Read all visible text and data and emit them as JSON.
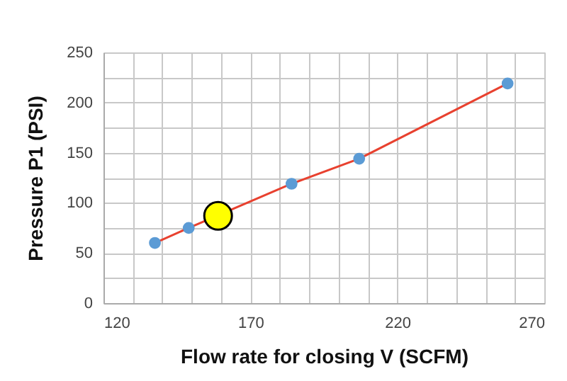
{
  "chart_data": {
    "type": "scatter",
    "xlabel": "Flow rate for closing V (SCFM)",
    "ylabel": "Pressure P1 (PSI)",
    "xlim": [
      120,
      270
    ],
    "ylim": [
      0,
      250
    ],
    "xticks": [
      120,
      {
        "value": 130,
        "label": null
      },
      {
        "value": 140,
        "label": null
      },
      {
        "value": 150,
        "label": null
      },
      {
        "value": 160,
        "label": null
      },
      170,
      {
        "value": 180,
        "label": null
      },
      {
        "value": 190,
        "label": null
      },
      {
        "value": 200,
        "label": null
      },
      {
        "value": 210,
        "label": null
      },
      220,
      {
        "value": 230,
        "label": null
      },
      {
        "value": 240,
        "label": null
      },
      {
        "value": 250,
        "label": null
      },
      {
        "value": 260,
        "label": null
      },
      270
    ],
    "yticks": [
      0,
      {
        "value": 25,
        "label": null
      },
      50,
      {
        "value": 75,
        "label": null
      },
      100,
      {
        "value": 125,
        "label": null
      },
      150,
      {
        "value": 175,
        "label": null
      },
      200,
      {
        "value": 225,
        "label": null
      },
      250
    ],
    "grid": true,
    "series": [
      {
        "type": "line",
        "marker": "none",
        "color": "#e8412f",
        "x": [
          137.5,
          149,
          184,
          207,
          257.5
        ],
        "values": [
          60,
          75,
          119,
          144,
          219
        ]
      },
      {
        "marker": "circle",
        "color": "#5b9bd5",
        "x": [
          137.5,
          149,
          184,
          207,
          257.5
        ],
        "values": [
          60,
          75,
          119,
          144,
          219
        ]
      },
      {
        "marker": "circle",
        "color": "#ffff00",
        "x": [
          159
        ],
        "values": [
          87
        ]
      }
    ]
  }
}
